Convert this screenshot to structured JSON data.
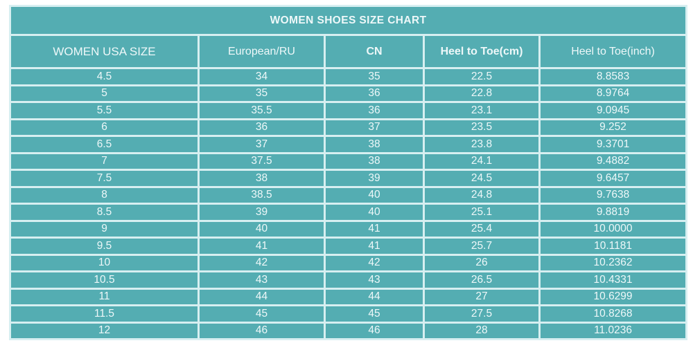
{
  "chart_data": {
    "type": "table",
    "title": "WOMEN SHOES SIZE CHART",
    "columns": [
      "WOMEN USA SIZE",
      "European/RU",
      "CN",
      "Heel to Toe(cm)",
      "Heel to Toe(inch)"
    ],
    "rows": [
      [
        "4.5",
        "34",
        "35",
        "22.5",
        "8.8583"
      ],
      [
        "5",
        "35",
        "36",
        "22.8",
        "8.9764"
      ],
      [
        "5.5",
        "35.5",
        "36",
        "23.1",
        "9.0945"
      ],
      [
        "6",
        "36",
        "37",
        "23.5",
        "9.252"
      ],
      [
        "6.5",
        "37",
        "38",
        "23.8",
        "9.3701"
      ],
      [
        "7",
        "37.5",
        "38",
        "24.1",
        "9.4882"
      ],
      [
        "7.5",
        "38",
        "39",
        "24.5",
        "9.6457"
      ],
      [
        "8",
        "38.5",
        "40",
        "24.8",
        "9.7638"
      ],
      [
        "8.5",
        "39",
        "40",
        "25.1",
        "9.8819"
      ],
      [
        "9",
        "40",
        "41",
        "25.4",
        "10.0000"
      ],
      [
        "9.5",
        "41",
        "41",
        "25.7",
        "10.1181"
      ],
      [
        "10",
        "42",
        "42",
        "26",
        "10.2362"
      ],
      [
        "10.5",
        "43",
        "43",
        "26.5",
        "10.4331"
      ],
      [
        "11",
        "44",
        "44",
        "27",
        "10.6299"
      ],
      [
        "11.5",
        "45",
        "45",
        "27.5",
        "10.8268"
      ],
      [
        "12",
        "46",
        "46",
        "28",
        "11.0236"
      ]
    ]
  },
  "colors": {
    "cell_bg": "#54adb2",
    "grid": "#d7eff1",
    "text": "#eef8f9",
    "page_bg": "#ffffff"
  }
}
